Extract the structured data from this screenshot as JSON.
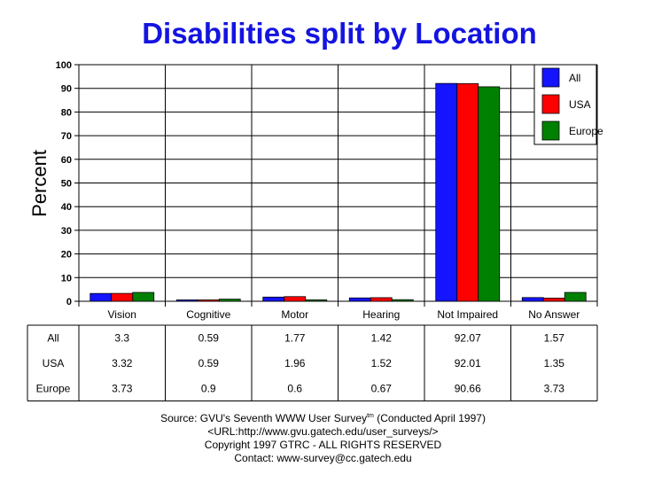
{
  "chart_data": {
    "type": "bar",
    "title": "Disabilities split by Location",
    "xlabel": "",
    "ylabel": "Percent",
    "ylim": [
      0,
      100
    ],
    "yticks": [
      0,
      10,
      20,
      30,
      40,
      50,
      60,
      70,
      80,
      90,
      100
    ],
    "categories": [
      "Vision",
      "Cognitive",
      "Motor",
      "Hearing",
      "Not Impaired",
      "No Answer"
    ],
    "series": [
      {
        "name": "All",
        "color": "#1414ff",
        "values": [
          3.3,
          0.59,
          1.77,
          1.42,
          92.07,
          1.57
        ],
        "labels": [
          "3.3",
          "0.59",
          "1.77",
          "1.42",
          "92.07",
          "1.57"
        ]
      },
      {
        "name": "USA",
        "color": "#ff0000",
        "values": [
          3.32,
          0.59,
          1.96,
          1.52,
          92.01,
          1.35
        ],
        "labels": [
          "3.32",
          "0.59",
          "1.96",
          "1.52",
          "92.01",
          "1.35"
        ]
      },
      {
        "name": "Europe",
        "color": "#008000",
        "values": [
          3.73,
          0.9,
          0.6,
          0.67,
          90.66,
          3.73
        ],
        "labels": [
          "3.73",
          "0.9",
          "0.6",
          "0.67",
          "90.66",
          "3.73"
        ]
      }
    ],
    "grid": true,
    "legend_position": "top-right"
  },
  "footer": {
    "source_prefix": "Source: GVU's Seventh WWW User Survey",
    "source_tm": "tm",
    "source_suffix": " (Conducted April 1997)",
    "url": "<URL:http://www.gvu.gatech.edu/user_surveys/>",
    "copyright": "Copyright 1997 GTRC - ALL RIGHTS RESERVED",
    "contact": "Contact: www-survey@cc.gatech.edu"
  }
}
